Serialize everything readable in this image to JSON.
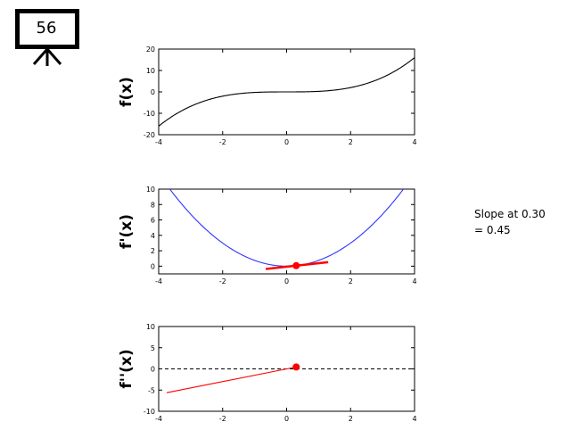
{
  "badge": {
    "number": "56"
  },
  "annotation": {
    "line1": "Slope at 0.30",
    "line2": "= 0.45"
  },
  "chart_data": [
    {
      "type": "line",
      "title": "",
      "ylabel": "f(x)",
      "xlim": [
        -4,
        4
      ],
      "ylim": [
        -20,
        20
      ],
      "xticks": [
        -4,
        -2,
        0,
        2,
        4
      ],
      "yticks": [
        -20,
        -10,
        0,
        10,
        20
      ],
      "series": [
        {
          "function": "x^3/4",
          "color": "#000000"
        }
      ]
    },
    {
      "type": "line",
      "title": "",
      "ylabel": "f'(x)",
      "xlim": [
        -4,
        4
      ],
      "ylim": [
        -1,
        10
      ],
      "xticks": [
        -4,
        -2,
        0,
        2,
        4
      ],
      "yticks": [
        0,
        2,
        4,
        6,
        8,
        10
      ],
      "series": [
        {
          "function": "3x^2/4",
          "color": "#3333ff"
        }
      ],
      "tangent": {
        "x": 0.3,
        "y": 0.0675,
        "slope": 0.45,
        "x_range": [
          -0.65,
          1.3
        ],
        "color": "#ff0000"
      },
      "point": {
        "x": 0.3,
        "y": 0.0675,
        "color": "#ff0000"
      }
    },
    {
      "type": "line",
      "title": "",
      "ylabel": "f''(x)",
      "xlim": [
        -4,
        4
      ],
      "ylim": [
        -10,
        10
      ],
      "xticks": [
        -4,
        -2,
        0,
        2,
        4
      ],
      "yticks": [
        -10,
        -5,
        0,
        5,
        10
      ],
      "series": [
        {
          "x": [
            -3.75,
            0.3
          ],
          "y": [
            -5.625,
            0.45
          ],
          "color": "#ff0000"
        }
      ],
      "zero_line": {
        "y": 0,
        "style": "dashed"
      },
      "point": {
        "x": 0.3,
        "y": 0.45,
        "color": "#ff0000"
      }
    }
  ]
}
